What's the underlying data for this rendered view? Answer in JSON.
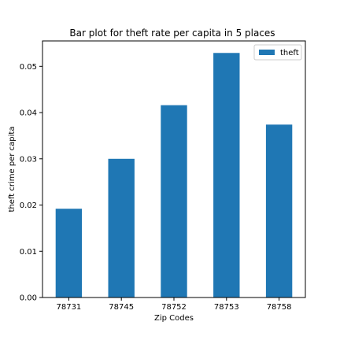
{
  "chart_data": {
    "type": "bar",
    "title": "Bar plot for theft rate per capita in 5 places",
    "xlabel": "Zip Codes",
    "ylabel": "theft crime per capita",
    "categories": [
      "78731",
      "78745",
      "78752",
      "78753",
      "78758"
    ],
    "series": [
      {
        "name": "theft",
        "values": [
          0.0192,
          0.03,
          0.0416,
          0.0529,
          0.0374
        ]
      }
    ],
    "ylim": [
      0,
      0.0555
    ],
    "yticks": [
      0.0,
      0.01,
      0.02,
      0.03,
      0.04,
      0.05
    ],
    "ytick_labels": [
      "0.00",
      "0.01",
      "0.02",
      "0.03",
      "0.04",
      "0.05"
    ],
    "grid": false,
    "legend_position": "top-right",
    "colors": {
      "bar": "#1f77b4",
      "axis": "#000000",
      "legend_border": "#cccccc"
    }
  }
}
